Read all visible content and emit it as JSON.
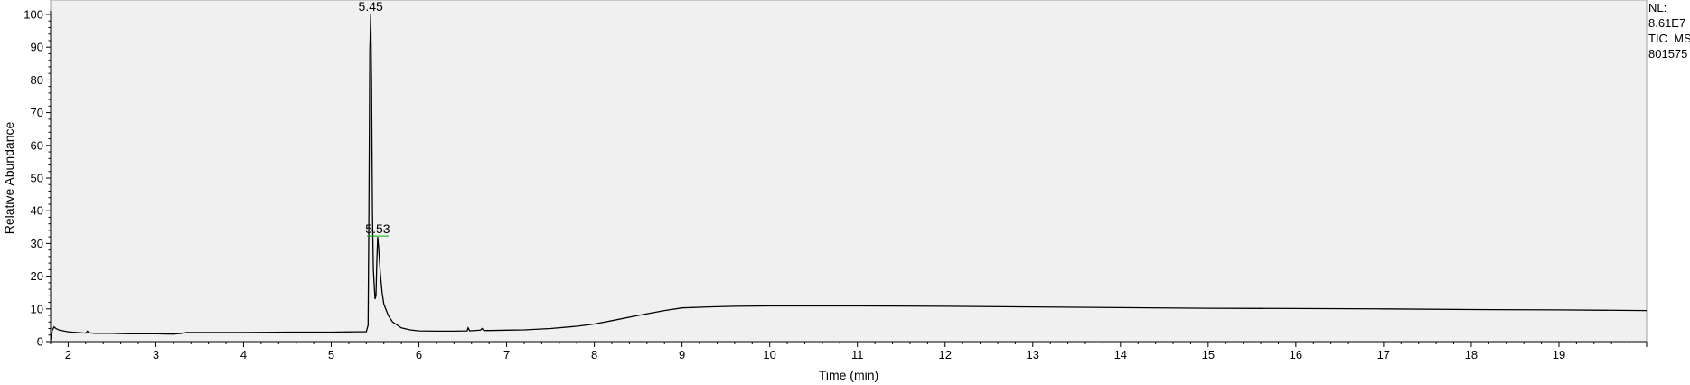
{
  "chart_data": {
    "type": "line",
    "xlabel": "Time (min)",
    "ylabel": "Relative Abundance",
    "xlim": [
      1.8,
      20.0
    ],
    "ylim": [
      0,
      100
    ],
    "x_ticks": [
      2,
      3,
      4,
      5,
      6,
      7,
      8,
      9,
      10,
      11,
      12,
      13,
      14,
      15,
      16,
      17,
      18,
      19
    ],
    "y_ticks": [
      0,
      10,
      20,
      30,
      40,
      50,
      60,
      70,
      80,
      90,
      100
    ],
    "grid": false,
    "series": [
      {
        "color": "#000000",
        "x": [
          1.8,
          1.82,
          1.84,
          1.86,
          1.9,
          2.0,
          2.1,
          2.2,
          2.22,
          2.24,
          2.3,
          2.5,
          2.7,
          3.0,
          3.2,
          3.3,
          3.35,
          3.5,
          4.0,
          4.5,
          5.0,
          5.3,
          5.4,
          5.42,
          5.43,
          5.44,
          5.45,
          5.46,
          5.47,
          5.48,
          5.49,
          5.5,
          5.51,
          5.52,
          5.53,
          5.54,
          5.56,
          5.58,
          5.6,
          5.65,
          5.7,
          5.8,
          5.9,
          6.0,
          6.2,
          6.4,
          6.55,
          6.56,
          6.58,
          6.7,
          6.72,
          6.74,
          6.8,
          7.0,
          7.2,
          7.5,
          7.8,
          8.0,
          8.2,
          8.5,
          8.8,
          9.0,
          9.3,
          9.6,
          10.0,
          11.0,
          12.0,
          13.0,
          14.0,
          15.0,
          16.0,
          17.0,
          18.0,
          19.0,
          20.0
        ],
        "values": [
          0.5,
          3.5,
          4.5,
          4.0,
          3.5,
          3.0,
          2.8,
          2.6,
          3.2,
          2.7,
          2.5,
          2.5,
          2.4,
          2.4,
          2.3,
          2.5,
          2.8,
          2.8,
          2.8,
          2.9,
          2.9,
          3.0,
          3.0,
          5.0,
          40.0,
          89.0,
          100.0,
          80.0,
          40.0,
          22.0,
          17.0,
          13.0,
          14.0,
          25.0,
          32.0,
          29.0,
          21.0,
          15.0,
          11.5,
          8.0,
          6.0,
          4.2,
          3.6,
          3.3,
          3.2,
          3.2,
          3.3,
          4.2,
          3.3,
          3.5,
          4.0,
          3.4,
          3.4,
          3.5,
          3.6,
          4.0,
          4.7,
          5.4,
          6.4,
          8.0,
          9.5,
          10.3,
          10.6,
          10.8,
          10.9,
          10.9,
          10.8,
          10.6,
          10.4,
          10.2,
          10.1,
          10.0,
          9.8,
          9.7,
          9.5
        ]
      }
    ],
    "peak_labels": [
      {
        "text": "5.45",
        "x": 5.45,
        "y": 100
      },
      {
        "text": "5.53",
        "x": 5.53,
        "y": 32
      }
    ]
  },
  "side_info": [
    "NL:",
    "8.61E7",
    "TIC  MS",
    "801575"
  ]
}
